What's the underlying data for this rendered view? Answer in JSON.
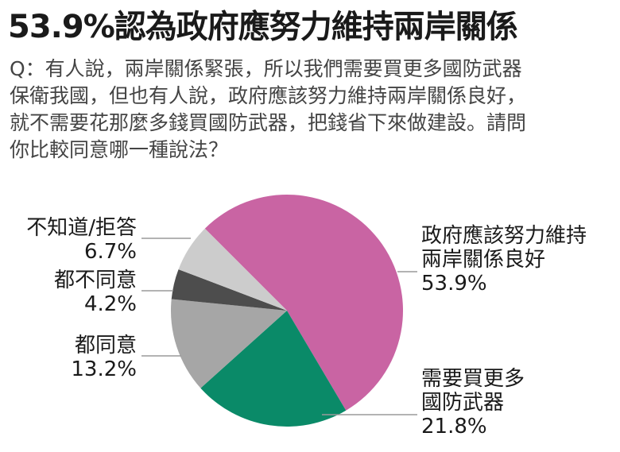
{
  "header": {
    "title": "53.9%認為政府應努力維持兩岸關係",
    "question_lines": [
      "Q：有人說，兩岸關係緊張，所以我們需要買更多國防武器",
      "保衛我國，但也有人說，政府應該努力維持兩岸關係良好，",
      "就不需要花那麼多錢買國防武器，把錢省下來做建設。請問",
      "你比較同意哪一種說法？"
    ]
  },
  "chart_data": {
    "type": "pie",
    "title": "53.9%認為政府應努力維持兩岸關係",
    "subtitle": "Q：有人說，兩岸關係緊張，所以我們需要買更多國防武器保衛我國，但也有人說，政府應該努力維持兩岸關係良好，就不需要花那麼多錢買國防武器，把錢省下來做建設。請問你比較同意哪一種說法？",
    "categories": [
      "政府應該努力維持兩岸關係良好",
      "需要買更多國防武器",
      "都同意",
      "都不同意",
      "不知道/拒答"
    ],
    "values": [
      53.9,
      21.8,
      13.2,
      4.2,
      6.7
    ],
    "unit": "%",
    "colors": [
      "#c964a3",
      "#0a8a68",
      "#a6a6a6",
      "#4d4d4d",
      "#cccccc"
    ],
    "start_angle_deg": 225,
    "direction": "clockwise",
    "legend": "none (callout labels with leader lines)"
  },
  "labels": {
    "s0": {
      "line1": "政府應該努力維持",
      "line2": "兩岸關係良好",
      "value": "53.9%"
    },
    "s1": {
      "line1": "需要買更多",
      "line2": "國防武器",
      "value": "21.8%"
    },
    "s2": {
      "line1": "都同意",
      "value": "13.2%"
    },
    "s3": {
      "line1": "都不同意",
      "value": "4.2%"
    },
    "s4": {
      "line1": "不知道/拒答",
      "value": "6.7%"
    }
  }
}
